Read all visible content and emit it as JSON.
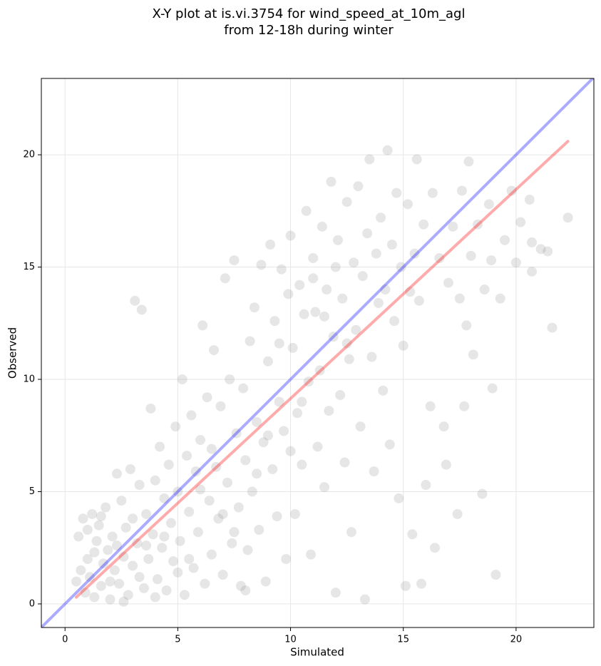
{
  "chart_data": {
    "type": "scatter",
    "title": [
      "X-Y plot at is.vi.3754 for wind_speed_at_10m_agl",
      "from 12-18h during winter"
    ],
    "xlabel": "Simulated",
    "ylabel": "Observed",
    "xlim": [
      -1.05,
      23.45
    ],
    "ylim": [
      -1.05,
      23.4
    ],
    "xticks": [
      0,
      5,
      10,
      15,
      20
    ],
    "yticks": [
      0,
      5,
      10,
      15,
      20
    ],
    "grid": true,
    "color": "#808080",
    "x": [
      0.5,
      0.6,
      0.8,
      0.9,
      1.0,
      1.1,
      1.2,
      1.3,
      1.4,
      1.5,
      1.6,
      1.7,
      1.8,
      1.9,
      2.0,
      2.1,
      2.2,
      2.3,
      2.4,
      2.5,
      2.6,
      2.7,
      2.8,
      2.9,
      3.0,
      3.1,
      3.2,
      3.3,
      3.4,
      3.5,
      3.6,
      3.7,
      3.8,
      3.9,
      4.0,
      4.1,
      4.2,
      4.3,
      4.4,
      4.5,
      4.6,
      4.7,
      4.8,
      4.9,
      5.0,
      5.1,
      5.2,
      5.3,
      5.4,
      5.5,
      5.6,
      5.7,
      5.8,
      5.9,
      6.0,
      6.1,
      6.2,
      6.3,
      6.4,
      6.5,
      6.6,
      6.7,
      6.8,
      6.9,
      7.0,
      7.1,
      7.2,
      7.3,
      7.4,
      7.5,
      7.6,
      7.7,
      7.8,
      7.9,
      8.0,
      8.1,
      8.2,
      8.3,
      8.4,
      8.5,
      8.6,
      8.7,
      8.8,
      8.9,
      9.0,
      9.1,
      9.2,
      9.3,
      9.4,
      9.5,
      9.6,
      9.7,
      9.8,
      9.9,
      10.0,
      10.1,
      10.2,
      10.3,
      10.4,
      10.5,
      10.6,
      10.7,
      10.8,
      10.9,
      11.0,
      11.1,
      11.2,
      11.3,
      11.4,
      11.5,
      11.6,
      11.7,
      11.8,
      11.9,
      12.0,
      12.1,
      12.2,
      12.3,
      12.4,
      12.5,
      12.6,
      12.7,
      12.8,
      12.9,
      13.0,
      13.1,
      13.2,
      13.3,
      13.4,
      13.5,
      13.6,
      13.7,
      13.8,
      13.9,
      14.0,
      14.1,
      14.2,
      14.3,
      14.4,
      14.5,
      14.6,
      14.7,
      14.8,
      14.9,
      15.0,
      15.1,
      15.2,
      15.3,
      15.4,
      15.5,
      15.6,
      15.7,
      15.8,
      15.9,
      16.0,
      16.2,
      16.3,
      16.4,
      16.6,
      16.8,
      16.9,
      17.0,
      17.2,
      17.4,
      17.5,
      17.6,
      17.7,
      17.8,
      17.9,
      18.0,
      18.1,
      18.3,
      18.5,
      18.6,
      18.8,
      18.9,
      18.95,
      19.1,
      19.3,
      19.5,
      19.8,
      20.0,
      20.2,
      20.6,
      20.7,
      20.7,
      21.1,
      21.4,
      21.6,
      22.3,
      0.7,
      1.0,
      1.3,
      1.6,
      2.0,
      2.3,
      2.6,
      3.0,
      3.3,
      3.6,
      4.0,
      4.4,
      5.0,
      5.5,
      6.0,
      6.5,
      7.0,
      7.5,
      8.0,
      8.5,
      9.0,
      9.5,
      10.0,
      10.5,
      11.0,
      11.5,
      12.0,
      12.5
    ],
    "values": [
      1.0,
      3.0,
      3.8,
      0.5,
      2.0,
      1.2,
      4.0,
      0.3,
      2.8,
      3.5,
      0.8,
      1.8,
      4.3,
      2.4,
      0.2,
      3.0,
      1.5,
      5.8,
      0.9,
      4.6,
      2.1,
      3.4,
      0.4,
      6.0,
      1.7,
      13.5,
      2.7,
      5.3,
      13.1,
      0.7,
      4.0,
      2.0,
      8.7,
      3.1,
      5.5,
      1.1,
      7.0,
      2.5,
      4.7,
      0.6,
      6.2,
      3.6,
      1.9,
      7.9,
      5.0,
      2.8,
      10.0,
      0.4,
      6.6,
      4.1,
      8.4,
      1.6,
      5.9,
      3.2,
      7.3,
      12.4,
      0.9,
      9.2,
      4.6,
      2.2,
      11.3,
      6.1,
      3.8,
      8.8,
      1.3,
      14.5,
      5.4,
      10.0,
      2.7,
      15.3,
      7.6,
      4.3,
      0.8,
      9.6,
      6.4,
      2.4,
      11.7,
      5.0,
      13.2,
      8.1,
      3.3,
      15.1,
      7.2,
      1.0,
      10.8,
      16.0,
      6.0,
      12.6,
      3.9,
      9.0,
      14.9,
      7.7,
      2.0,
      13.8,
      16.4,
      11.4,
      4.0,
      8.5,
      14.2,
      6.2,
      12.9,
      17.5,
      9.9,
      2.2,
      15.4,
      13.0,
      7.0,
      10.4,
      16.8,
      5.2,
      14.0,
      8.6,
      18.8,
      11.9,
      0.5,
      16.2,
      9.3,
      13.6,
      6.3,
      17.9,
      10.9,
      3.2,
      15.2,
      12.2,
      18.6,
      7.9,
      14.6,
      0.2,
      16.5,
      19.8,
      11.0,
      5.9,
      15.6,
      13.4,
      17.2,
      9.5,
      14.0,
      20.2,
      7.1,
      16.0,
      12.6,
      18.3,
      4.7,
      15.0,
      11.5,
      0.8,
      17.8,
      13.9,
      3.1,
      15.6,
      19.8,
      13.5,
      0.9,
      16.9,
      5.3,
      8.8,
      18.3,
      2.5,
      15.4,
      7.9,
      6.2,
      14.3,
      16.8,
      4.0,
      13.6,
      18.4,
      8.8,
      12.4,
      19.7,
      15.5,
      11.1,
      16.9,
      4.9,
      14.0,
      17.8,
      15.3,
      9.6,
      1.3,
      13.6,
      16.2,
      18.4,
      15.2,
      17.0,
      18.0,
      16.1,
      14.8,
      15.8,
      15.7,
      12.3,
      17.2,
      1.5,
      3.3,
      2.3,
      3.9,
      1.0,
      2.6,
      0.1,
      3.8,
      1.2,
      2.6,
      0.3,
      3.0,
      1.4,
      2.0,
      5.1,
      6.9,
      4.0,
      3.2,
      0.6,
      5.8,
      7.5,
      11.6,
      6.8,
      9.0,
      14.5,
      12.8,
      15.0,
      11.6
    ],
    "reference_lines": [
      {
        "color": "#0000ff",
        "x": [
          -1.05,
          23.45
        ],
        "y": [
          -1.05,
          23.45
        ]
      },
      {
        "color": "#ff0000",
        "x": [
          0.5,
          22.3
        ],
        "y": [
          0.3,
          20.6
        ]
      }
    ]
  }
}
